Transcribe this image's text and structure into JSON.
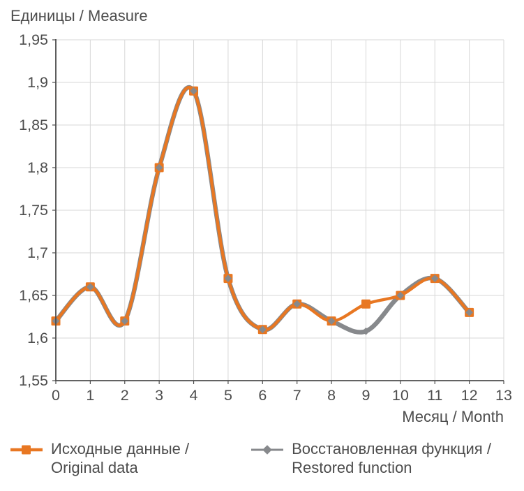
{
  "chart_data": {
    "type": "line",
    "title": "Единицы / Measure",
    "xlabel": "Месяц / Month",
    "xlim": [
      0,
      13
    ],
    "ylim": [
      1.55,
      1.95
    ],
    "grid": true,
    "legend_position": "bottom",
    "x_ticks": {
      "values": [
        0,
        1,
        2,
        3,
        4,
        5,
        6,
        7,
        8,
        9,
        10,
        11,
        12,
        13
      ],
      "labels": [
        "0",
        "1",
        "2",
        "3",
        "4",
        "5",
        "6",
        "7",
        "8",
        "9",
        "10",
        "11",
        "12",
        "13"
      ]
    },
    "y_ticks": {
      "values": [
        1.95,
        1.9,
        1.85,
        1.8,
        1.75,
        1.7,
        1.65,
        1.6,
        1.55
      ],
      "labels": [
        "1,95",
        "1,9",
        "1,85",
        "1,8",
        "1,75",
        "1,7",
        "1,65",
        "1,6",
        "1,55"
      ]
    },
    "x": [
      0,
      1,
      2,
      3,
      4,
      5,
      6,
      7,
      8,
      9,
      10,
      11,
      12
    ],
    "series": [
      {
        "name": "Исходные данные / Original data",
        "legend_lines": [
          "Исходные данные /",
          "Original data"
        ],
        "color": "#e87722",
        "marker": "square",
        "values": [
          1.62,
          1.66,
          1.62,
          1.8,
          1.89,
          1.67,
          1.61,
          1.64,
          1.62,
          1.64,
          1.65,
          1.67,
          1.63
        ]
      },
      {
        "name": "Восстановленная функция / Restored function",
        "legend_lines": [
          "Восстановленная функция /",
          "Restored function"
        ],
        "color": "#87898c",
        "marker": "diamond",
        "values": [
          1.62,
          1.66,
          1.62,
          1.8,
          1.89,
          1.67,
          1.61,
          1.64,
          1.62,
          1.608,
          1.65,
          1.67,
          1.63
        ]
      }
    ],
    "colors": {
      "grid": "#d7d7d7",
      "axis": "#4d4d4d",
      "text": "#4d4d4d",
      "background": "#ffffff"
    }
  }
}
